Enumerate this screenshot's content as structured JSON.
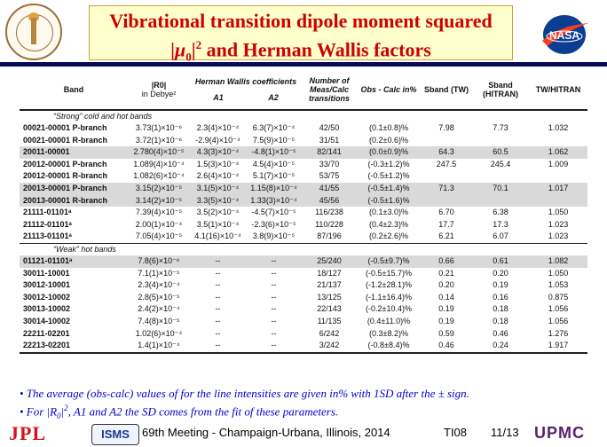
{
  "header": {
    "title_line1": "Vibrational transition dipole moment squared",
    "title_line2_pre": "|",
    "title_line2_mu": "μ",
    "title_line2_sub": "0",
    "title_line2_post": "|",
    "title_line2_sup": "2",
    "title_line2_rest": " and Herman Wallis factors"
  },
  "table": {
    "h_band": "Band",
    "h_r0": "|R0|",
    "h_in_debye": "in Debye²",
    "h_hw": "Herman Wallis coefficients",
    "h_a1": "A1",
    "h_a2": "A2",
    "h_num": "Number of Meas/Calc transitions",
    "h_obs": "Obs - Calc in%",
    "h_sband_tw": "Sband (TW)",
    "h_sband_hitran": "Sband (HITRAN)",
    "h_tw_hitran": "TW/HITRAN",
    "section1": "“Strong” cold and hot bands",
    "section2": "“Weak” hot bands",
    "rows_strong": [
      {
        "band": "00021-00001 P-branch",
        "r0": "3.73(1)×10⁻⁶",
        "a1": "2.3(4)×10⁻⁴",
        "a2": "6.3(7)×10⁻⁴",
        "num": "42/50",
        "obs": "(0.1±0.8)%",
        "tw": "7.98",
        "hitran": "7.73",
        "ratio": "1.032",
        "shade": false
      },
      {
        "band": "00021-00001 R-branch",
        "r0": "3.72(1)×10⁻⁶",
        "a1": "-2.9(4)×10⁻⁴",
        "a2": "7.5(9)×10⁻⁵",
        "num": "31/51",
        "obs": "(0.2±0.6)%",
        "tw": "",
        "hitran": "",
        "ratio": "",
        "shade": false
      },
      {
        "band": "20011-00001",
        "r0": "2.780(4)×10⁻⁵",
        "a1": "4.3(3)×10⁻⁴",
        "a2": "-4.8(1)×10⁻⁵",
        "num": "82/141",
        "obs": "(0.0±0.9)%",
        "tw": "64.3",
        "hitran": "60.5",
        "ratio": "1.062",
        "shade": true
      },
      {
        "band": "20012-00001 P-branch",
        "r0": "1.089(4)×10⁻⁴",
        "a1": "1.5(3)×10⁻⁴",
        "a2": "4.5(4)×10⁻⁵",
        "num": "33/70",
        "obs": "(-0.3±1.2)%",
        "tw": "247.5",
        "hitran": "245.4",
        "ratio": "1.009",
        "shade": false
      },
      {
        "band": "20012-00001 R-branch",
        "r0": "1.082(6)×10⁻⁴",
        "a1": "2.6(4)×10⁻⁴",
        "a2": "5.1(7)×10⁻⁵",
        "num": "53/75",
        "obs": "(-0.5±1.2)%",
        "tw": "",
        "hitran": "",
        "ratio": "",
        "shade": false
      },
      {
        "band": "20013-00001 P-branch",
        "r0": "3.15(2)×10⁻⁵",
        "a1": "3.1(5)×10⁻⁴",
        "a2": "1.15(8)×10⁻⁴",
        "num": "41/55",
        "obs": "(-0.5±1.4)%",
        "tw": "71.3",
        "hitran": "70.1",
        "ratio": "1.017",
        "shade": true
      },
      {
        "band": "20013-00001 R-branch",
        "r0": "3.14(2)×10⁻⁵",
        "a1": "3.3(5)×10⁻⁴",
        "a2": "1.33(3)×10⁻⁴",
        "num": "45/56",
        "obs": "(-0.5±1.6)%",
        "tw": "",
        "hitran": "",
        "ratio": "",
        "shade": true
      },
      {
        "band": "21111-01101ᵃ",
        "r0": "7.39(4)×10⁻⁵",
        "a1": "3.5(2)×10⁻⁴",
        "a2": "-4.5(7)×10⁻⁵",
        "num": "116/238",
        "obs": "(0.1±3.0)%",
        "tw": "6.70",
        "hitran": "6.38",
        "ratio": "1.050",
        "shade": false
      },
      {
        "band": "21112-01101ᵃ",
        "r0": "2.00(1)×10⁻⁴",
        "a1": "3.5(1)×10⁻⁴",
        "a2": "-2.3(6)×10⁻⁵",
        "num": "110/228",
        "obs": "(0.4±2.3)%",
        "tw": "17.7",
        "hitran": "17.3",
        "ratio": "1.023",
        "shade": false
      },
      {
        "band": "21113-01101ᵃ",
        "r0": "7.05(4)×10⁻⁵",
        "a1": "4.1(16)×10⁻⁴",
        "a2": "3.8(9)×10⁻⁵",
        "num": "87/196",
        "obs": "(0.2±2.6)%",
        "tw": "6.21",
        "hitran": "6.07",
        "ratio": "1.023",
        "shade": false
      }
    ],
    "rows_weak": [
      {
        "band": "01121-01101ᵃ",
        "r0": "7.8(6)×10⁻⁶",
        "a1": "--",
        "a2": "--",
        "num": "25/240",
        "obs": "(-0.5±9.7)%",
        "tw": "0.66",
        "hitran": "0.61",
        "ratio": "1.082",
        "shade": true
      },
      {
        "band": "30011-10001",
        "r0": "7.1(1)×10⁻⁵",
        "a1": "--",
        "a2": "--",
        "num": "18/127",
        "obs": "(-0.5±15.7)%",
        "tw": "0.21",
        "hitran": "0.20",
        "ratio": "1.050",
        "shade": false
      },
      {
        "band": "30012-10001",
        "r0": "2.3(4)×10⁻⁴",
        "a1": "--",
        "a2": "--",
        "num": "21/137",
        "obs": "(-1.2±28.1)%",
        "tw": "0.20",
        "hitran": "0.19",
        "ratio": "1.053",
        "shade": false
      },
      {
        "band": "30012-10002",
        "r0": "2.8(5)×10⁻⁵",
        "a1": "--",
        "a2": "--",
        "num": "13/125",
        "obs": "(-1.1±16.4)%",
        "tw": "0.14",
        "hitran": "0.16",
        "ratio": "0.875",
        "shade": false
      },
      {
        "band": "30013-10002",
        "r0": "2.4(2)×10⁻⁴",
        "a1": "--",
        "a2": "--",
        "num": "22/143",
        "obs": "(-0.2±10.4)%",
        "tw": "0.19",
        "hitran": "0.18",
        "ratio": "1.056",
        "shade": false
      },
      {
        "band": "30014-10002",
        "r0": "7.4(8)×10⁻⁵",
        "a1": "--",
        "a2": "--",
        "num": "11/135",
        "obs": "(0.4±11.0)%",
        "tw": "0.19",
        "hitran": "0.18",
        "ratio": "1.056",
        "shade": false
      },
      {
        "band": "22211-02201",
        "r0": "1.02(6)×10⁻⁴",
        "a1": "--",
        "a2": "--",
        "num": "6/242",
        "obs": "(0.3±8.2)%",
        "tw": "0.59",
        "hitran": "0.46",
        "ratio": "1.276",
        "shade": false
      },
      {
        "band": "22213-02201",
        "r0": "1.4(1)×10⁻⁴",
        "a1": "--",
        "a2": "--",
        "num": "3/242",
        "obs": "(-0.8±8.4)%",
        "tw": "0.46",
        "hitran": "0.24",
        "ratio": "1.917",
        "shade": false
      }
    ]
  },
  "notes": {
    "line1": "• The average (obs-calc) values of for the line intensities are given in% with 1SD after the ± sign.",
    "line2_pre": "• For |R",
    "line2_sub": "0",
    "line2_mid": "|",
    "line2_sup": "2",
    "line2_rest": ", A1 and A2 the SD comes from the fit of these parameters."
  },
  "footer": {
    "jpl": "JPL",
    "isms": "ISMS",
    "meeting": "69th Meeting - Champaign-Urbana, Illinois, 2014",
    "code": "TI08",
    "page": "11/13",
    "upmc": "UPMC"
  },
  "colors": {
    "title": "#cc0000",
    "title_bg": "#ffffcc",
    "divider": "#0a0a5a",
    "notes": "#0000cc",
    "jpl": "#d4141c",
    "nasa_blue": "#0b3d91",
    "nasa_red": "#fc3d21"
  }
}
